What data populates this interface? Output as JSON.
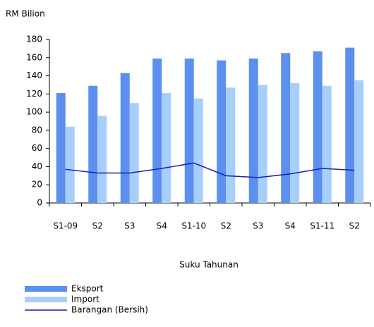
{
  "chart_data": {
    "type": "bar",
    "y_label": "RM Bilion",
    "x_label": "Suku Tahunan",
    "categories": [
      "S1-09",
      "S2",
      "S3",
      "S4",
      "S1-10",
      "S2",
      "S3",
      "S4",
      "S1-11",
      "S2"
    ],
    "series": [
      {
        "name": "Eksport",
        "color": "#5b8ff0",
        "values": [
          121,
          129,
          143,
          159,
          159,
          157,
          159,
          165,
          167,
          171
        ]
      },
      {
        "name": "Import",
        "color": "#a8cffc",
        "values": [
          84,
          96,
          110,
          121,
          115,
          127,
          130,
          132,
          129,
          135
        ]
      },
      {
        "name": "Barangan (Bersih)",
        "color": "#1f1fa8",
        "type": "line",
        "values": [
          37,
          33,
          33,
          38,
          44,
          30,
          28,
          32,
          38,
          36
        ]
      }
    ],
    "ylim": [
      0,
      180
    ],
    "yticks": [
      0,
      20,
      40,
      60,
      80,
      100,
      120,
      140,
      160,
      180
    ]
  }
}
